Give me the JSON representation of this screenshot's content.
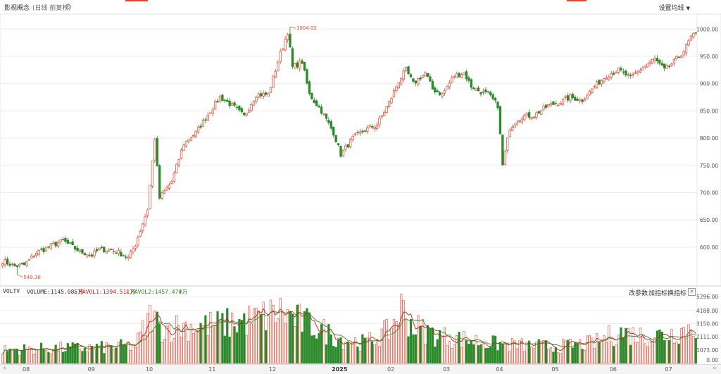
{
  "header": {
    "title": "影视概念",
    "subtitle": "(日线 前复权)",
    "ma_settings_label": "设置均线",
    "gear_icon": "gear-icon",
    "dropdown_icon": "triangle-down-icon"
  },
  "annotations": {
    "high_label": "1004.02",
    "low_label": "549.36"
  },
  "volume_panel": {
    "label": "VOLTV",
    "volume": "VOLUME:1145.085万",
    "mavol1": "MAVOL1:1394.511万",
    "mavol2": "MAVOL2:1457.470万",
    "buttons": [
      "改参数",
      "加指标",
      "换指标"
    ],
    "close_icon": "close-icon",
    "arrow_icon": "arrow-down-icon"
  },
  "colors": {
    "up": "#e8452f",
    "down": "#2a8a2a",
    "ma1": "#c02020",
    "ma2": "#2a8a2a"
  },
  "chart_data": {
    "type": "candlestick",
    "price_axis": {
      "ticks": [
        600,
        650,
        700,
        750,
        800,
        850,
        900,
        950,
        1000
      ],
      "labels": [
        "600.00",
        "650.00",
        "700.00",
        "750.00",
        "800.00",
        "850.00",
        "900.00",
        "950.00",
        "1000.00"
      ],
      "ylim": [
        530,
        1025
      ]
    },
    "volume_axis": {
      "ticks": [
        0,
        1073,
        2111,
        3150,
        4188,
        5296
      ],
      "labels": [
        "0.00",
        "1073.00",
        "2111.00",
        "3150.00",
        "4188.00",
        "5296.00"
      ],
      "ylim": [
        0,
        5296
      ]
    },
    "months": [
      "08",
      "09",
      "10",
      "11",
      "12",
      "2025",
      "02",
      "03",
      "04",
      "05",
      "06",
      "07"
    ],
    "high": 1004.02,
    "low": 549.36,
    "series_anchors_close": [
      [
        0,
        575
      ],
      [
        5,
        565
      ],
      [
        9,
        567
      ],
      [
        14,
        590
      ],
      [
        19,
        600
      ],
      [
        25,
        612
      ],
      [
        29,
        600
      ],
      [
        32,
        592
      ],
      [
        37,
        585
      ],
      [
        40,
        596
      ],
      [
        45,
        595
      ],
      [
        49,
        588
      ],
      [
        52,
        580
      ],
      [
        55,
        605
      ],
      [
        60,
        670
      ],
      [
        63,
        800
      ],
      [
        65,
        690
      ],
      [
        70,
        720
      ],
      [
        75,
        790
      ],
      [
        80,
        810
      ],
      [
        86,
        850
      ],
      [
        90,
        875
      ],
      [
        95,
        860
      ],
      [
        98,
        848
      ],
      [
        100,
        840
      ],
      [
        105,
        880
      ],
      [
        110,
        880
      ],
      [
        115,
        955
      ],
      [
        118,
        995
      ],
      [
        120,
        930
      ],
      [
        124,
        940
      ],
      [
        127,
        880
      ],
      [
        132,
        850
      ],
      [
        137,
        810
      ],
      [
        140,
        770
      ],
      [
        145,
        800
      ],
      [
        150,
        815
      ],
      [
        155,
        825
      ],
      [
        160,
        865
      ],
      [
        164,
        905
      ],
      [
        167,
        925
      ],
      [
        170,
        900
      ],
      [
        175,
        920
      ],
      [
        178,
        890
      ],
      [
        182,
        880
      ],
      [
        187,
        915
      ],
      [
        191,
        920
      ],
      [
        194,
        895
      ],
      [
        198,
        885
      ],
      [
        201,
        880
      ],
      [
        205,
        860
      ],
      [
        207,
        750
      ],
      [
        210,
        820
      ],
      [
        215,
        840
      ],
      [
        220,
        842
      ],
      [
        226,
        860
      ],
      [
        230,
        865
      ],
      [
        235,
        875
      ],
      [
        240,
        870
      ],
      [
        245,
        895
      ],
      [
        250,
        915
      ],
      [
        255,
        925
      ],
      [
        260,
        910
      ],
      [
        265,
        930
      ],
      [
        270,
        945
      ],
      [
        274,
        925
      ],
      [
        278,
        940
      ],
      [
        282,
        960
      ],
      [
        285,
        985
      ],
      [
        287,
        990
      ]
    ],
    "volume_anchors": [
      [
        0,
        1100
      ],
      [
        20,
        1250
      ],
      [
        40,
        1300
      ],
      [
        55,
        1500
      ],
      [
        62,
        4200
      ],
      [
        65,
        2900
      ],
      [
        75,
        3100
      ],
      [
        90,
        3200
      ],
      [
        105,
        3700
      ],
      [
        115,
        4300
      ],
      [
        120,
        3800
      ],
      [
        130,
        3000
      ],
      [
        140,
        2000
      ],
      [
        150,
        1700
      ],
      [
        160,
        2700
      ],
      [
        165,
        4600
      ],
      [
        170,
        3100
      ],
      [
        180,
        2300
      ],
      [
        195,
        1900
      ],
      [
        205,
        1600
      ],
      [
        215,
        1500
      ],
      [
        230,
        1400
      ],
      [
        245,
        1700
      ],
      [
        255,
        2600
      ],
      [
        265,
        2300
      ],
      [
        275,
        2400
      ],
      [
        287,
        3100
      ]
    ],
    "note_source": "values read from chart"
  }
}
